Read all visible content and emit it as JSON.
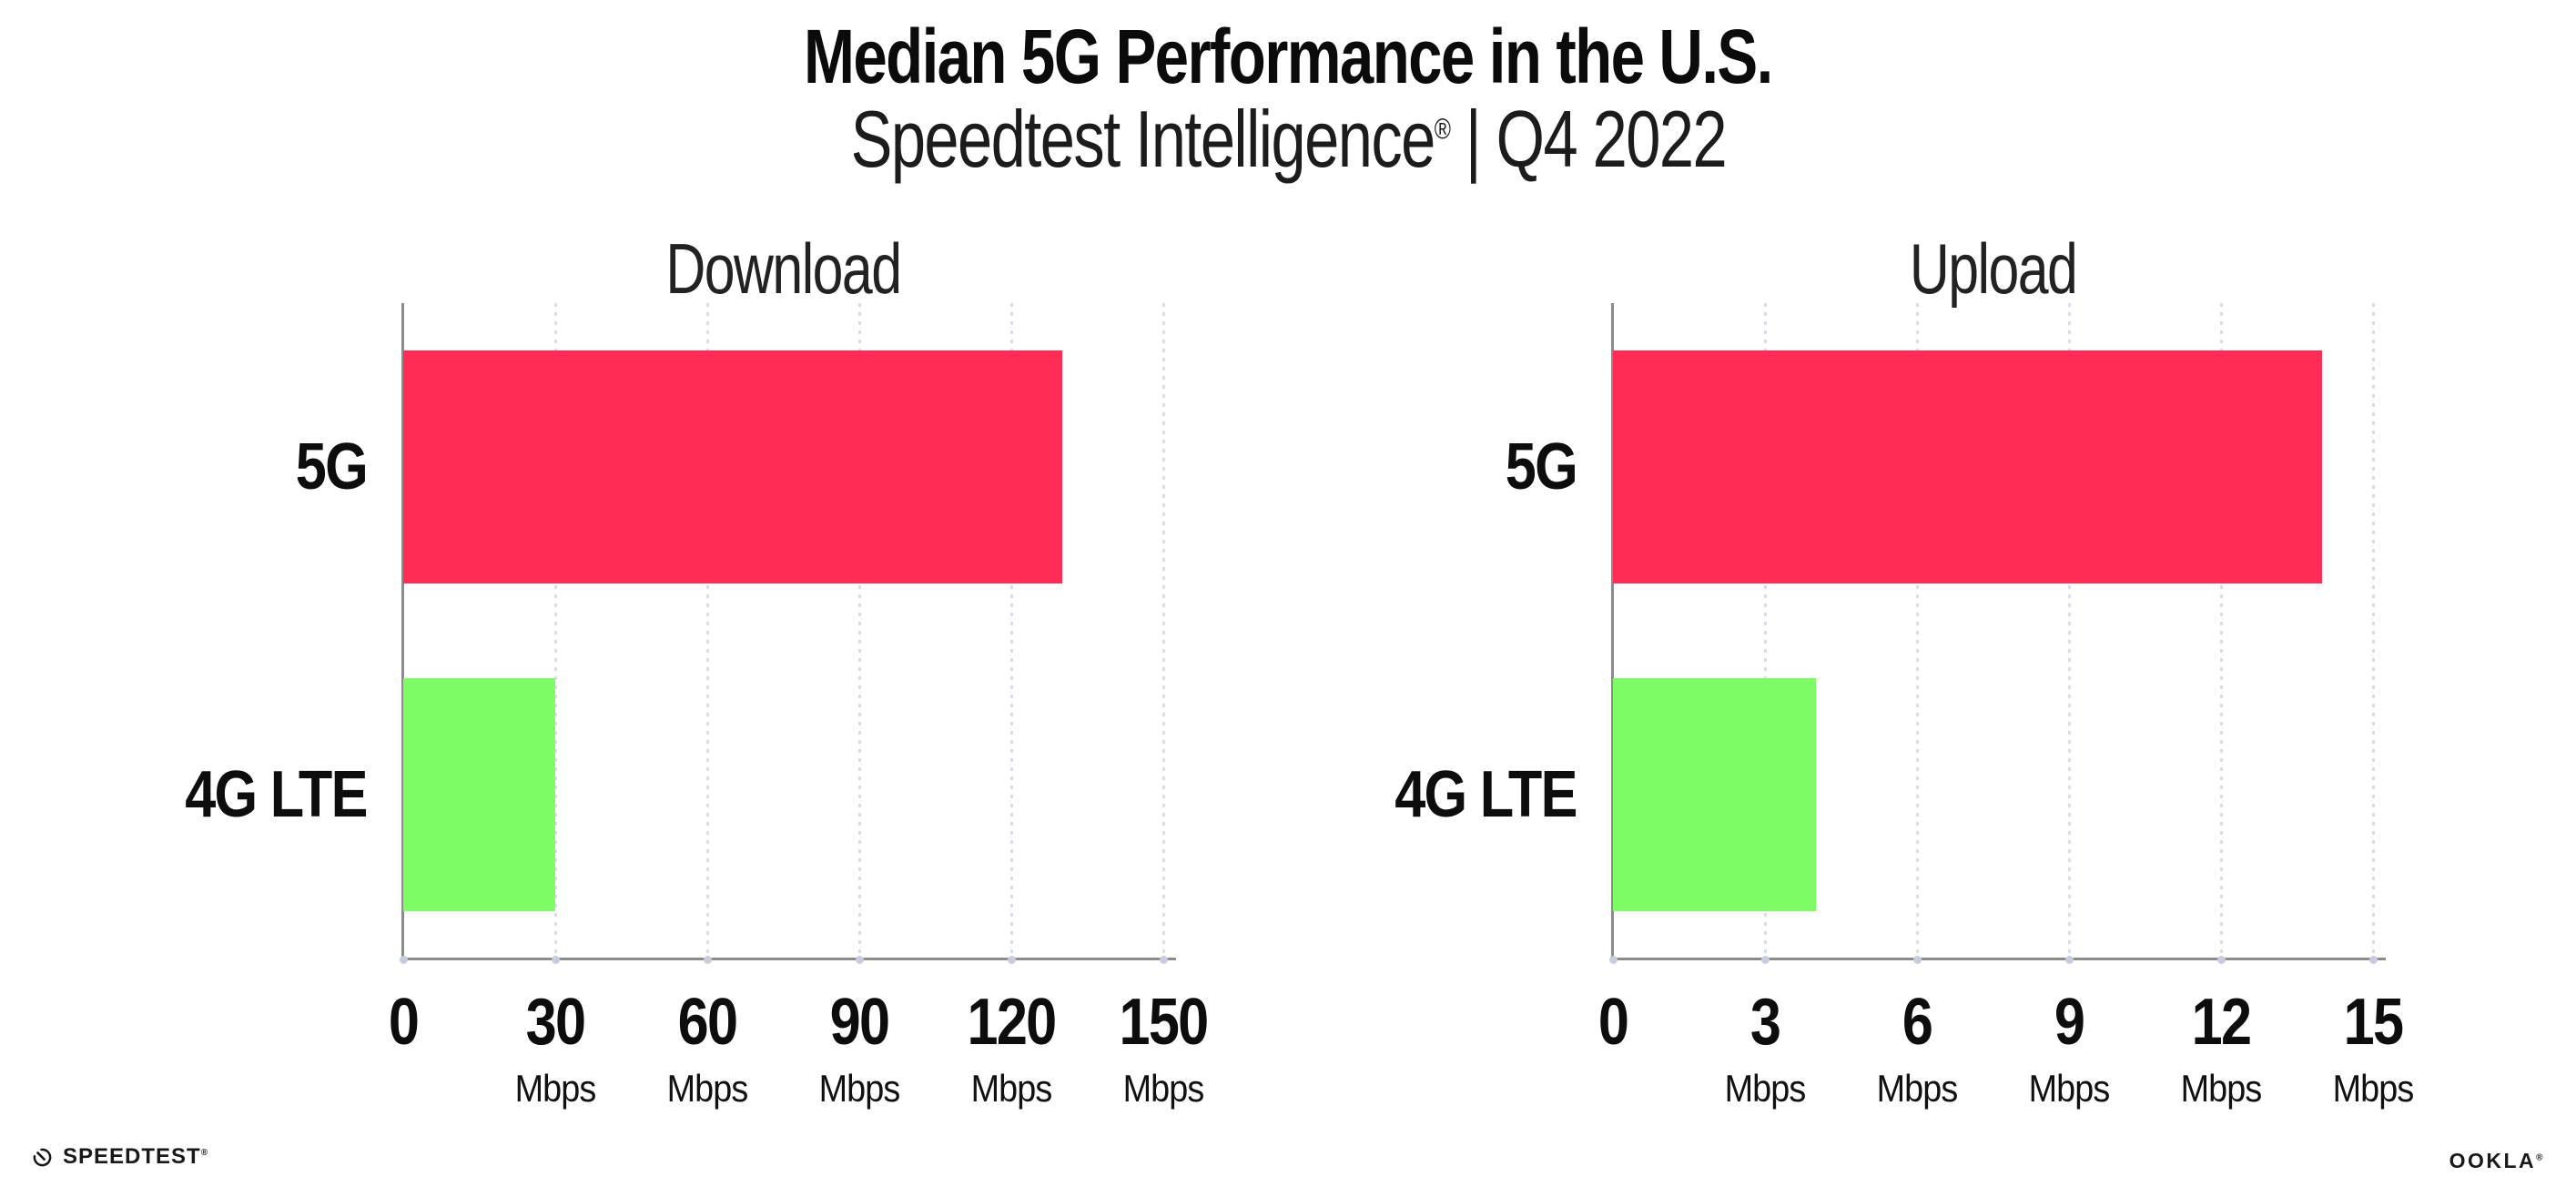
{
  "header": {
    "title": "Median 5G Performance in the U.S.",
    "subtitle_brand": "Speedtest Intelligence",
    "subtitle_reg": "®",
    "subtitle_rest": " | Q4 2022"
  },
  "colors": {
    "bar_5g_pink": "#FF2D55",
    "bar_4g_green": "#7DFC66",
    "axis_gray": "#8C8C8C",
    "gridline_gray": "#DBDCE7",
    "text_black": "#0D0D0D"
  },
  "chart_data": [
    {
      "type": "bar",
      "orientation": "horizontal",
      "title": "Download",
      "categories": [
        "5G",
        "4G LTE"
      ],
      "values": [
        130,
        30
      ],
      "unit": "Mbps",
      "xlabel": "",
      "xlim": [
        0,
        150
      ],
      "xticks": [
        0,
        30,
        60,
        90,
        120,
        150
      ],
      "bar_colors": [
        "#FF2D55",
        "#7DFC66"
      ],
      "grid": "dotted-vertical",
      "legend": "none"
    },
    {
      "type": "bar",
      "orientation": "horizontal",
      "title": "Upload",
      "categories": [
        "5G",
        "4G LTE"
      ],
      "values": [
        14,
        4
      ],
      "unit": "Mbps",
      "xlabel": "",
      "xlim": [
        0,
        15
      ],
      "xticks": [
        0,
        3,
        6,
        9,
        12,
        15
      ],
      "bar_colors": [
        "#FF2D55",
        "#7DFC66"
      ],
      "grid": "dotted-vertical",
      "legend": "none"
    }
  ],
  "footer": {
    "speedtest_label": "SPEEDTEST",
    "speedtest_mark": "®",
    "ookla_label": "OOKLA",
    "ookla_mark": "®"
  }
}
